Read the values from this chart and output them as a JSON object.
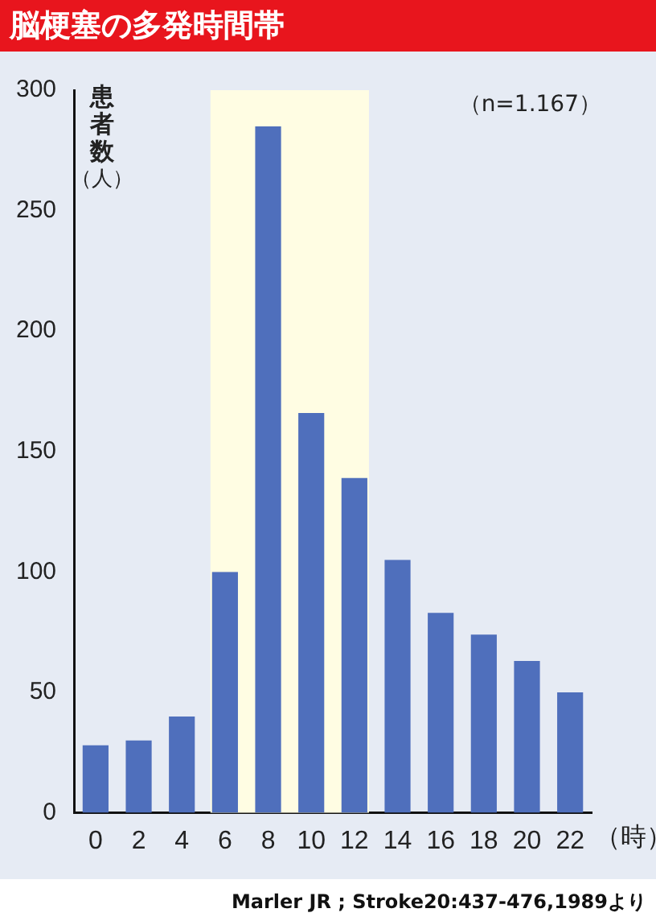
{
  "chart_data": {
    "type": "bar",
    "title": "脳梗塞の多発時間帯",
    "ylabel": "患者数（人）",
    "xlabel": "（時）",
    "categories": [
      "0",
      "2",
      "4",
      "6",
      "8",
      "10",
      "12",
      "14",
      "16",
      "18",
      "20",
      "22"
    ],
    "values": [
      28,
      30,
      40,
      100,
      285,
      166,
      139,
      105,
      83,
      74,
      63,
      50
    ],
    "color": "#4f6fbc",
    "ylim": [
      0,
      300
    ],
    "yticks": [
      0,
      50,
      100,
      150,
      200,
      250,
      300
    ],
    "grid": false,
    "bands": [
      {
        "axis": "x",
        "from": "6",
        "to": "12",
        "color": "#fffde3"
      }
    ],
    "annotations": [
      "（n=1.167）",
      "Marler JR ; Stroke20:437-476,1989より"
    ]
  }
}
